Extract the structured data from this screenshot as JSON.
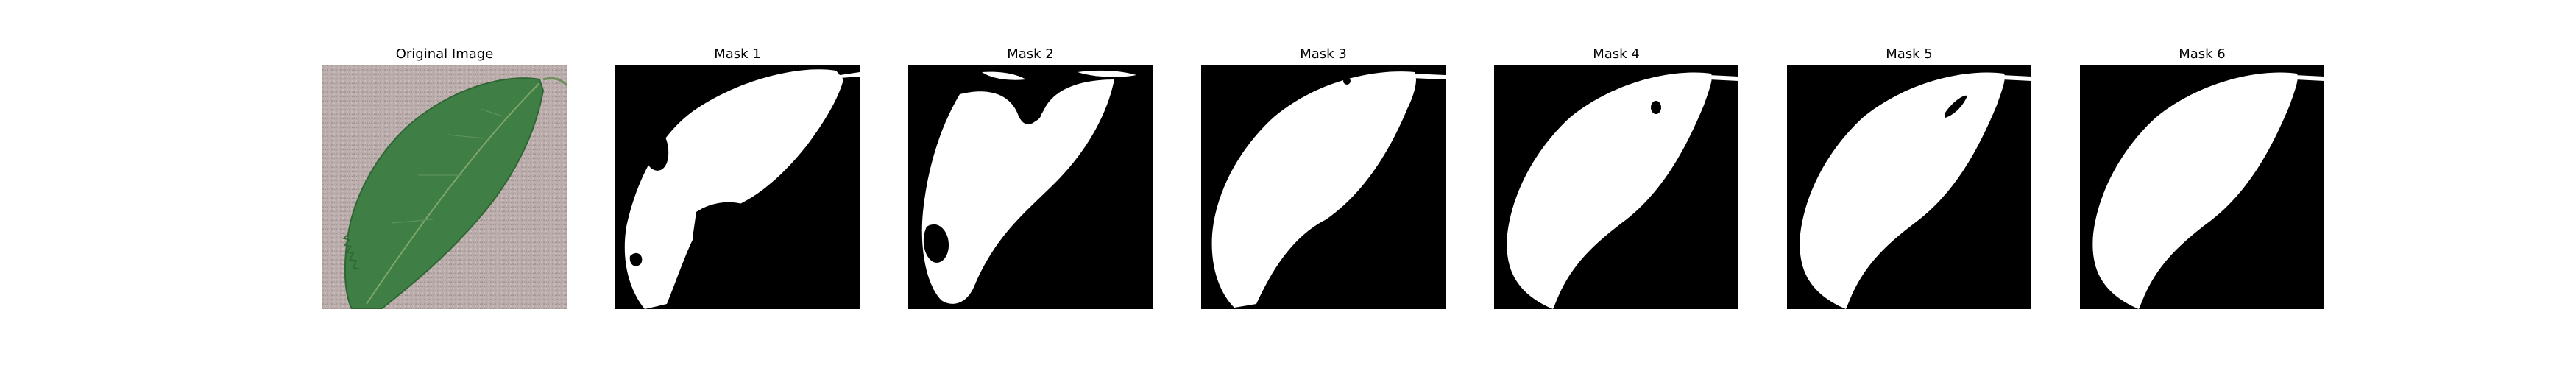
{
  "figure": {
    "panels": [
      {
        "title": "Original Image",
        "kind": "photo"
      },
      {
        "title": "Mask 1",
        "kind": "mask"
      },
      {
        "title": "Mask 2",
        "kind": "mask"
      },
      {
        "title": "Mask 3",
        "kind": "mask"
      },
      {
        "title": "Mask 4",
        "kind": "mask"
      },
      {
        "title": "Mask 5",
        "kind": "mask"
      },
      {
        "title": "Mask 6",
        "kind": "mask"
      }
    ],
    "colors": {
      "mask_background": "#000000",
      "mask_foreground": "#ffffff",
      "leaf": "#3f7f45",
      "leaf_dark": "#2f6634",
      "photo_background": "#b9a9a9"
    }
  }
}
